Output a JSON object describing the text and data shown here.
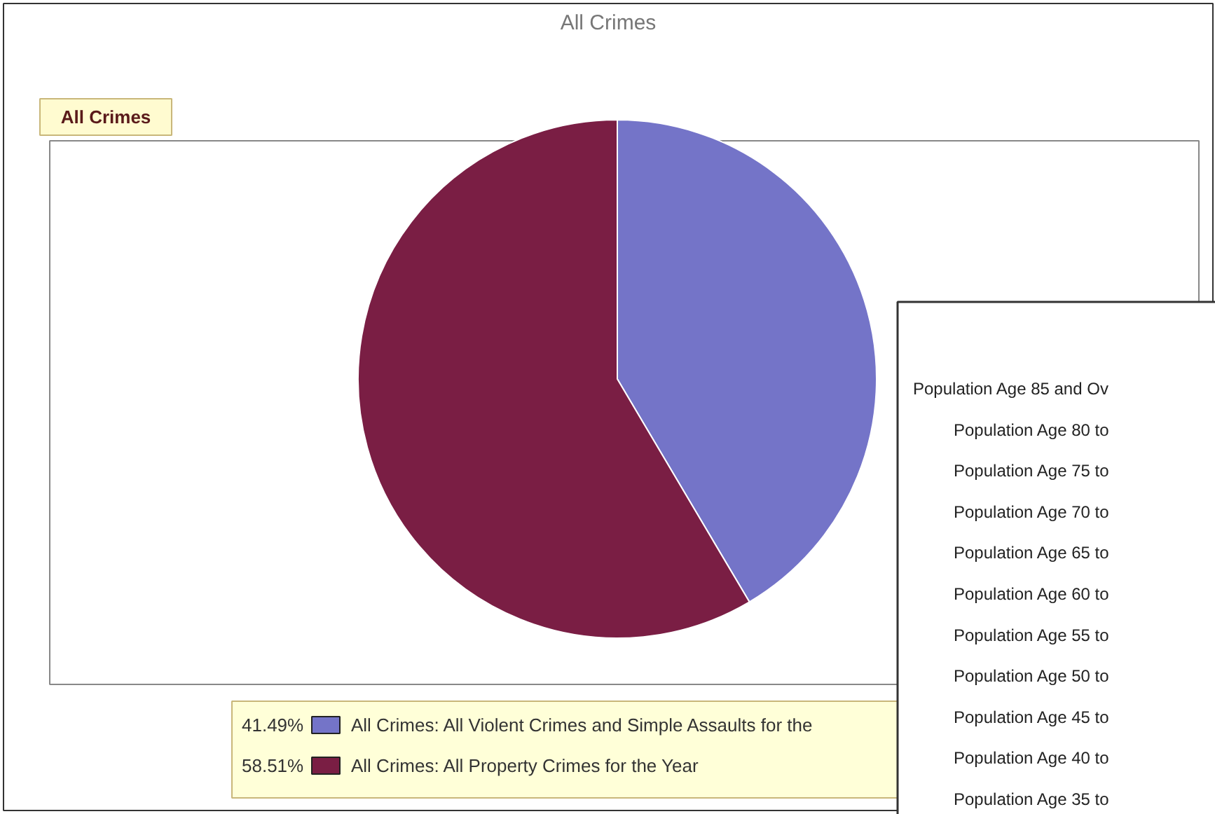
{
  "chart_data": [
    {
      "type": "pie",
      "title": "All Crimes",
      "subtitle": "All Crimes",
      "categories": [
        "All Crimes: All Violent Crimes and Simple Assaults for the",
        "All Crimes: All Property Crimes for the Year"
      ],
      "values": [
        41.49,
        58.51
      ],
      "colors": [
        "#7474c8",
        "#7a1e44"
      ],
      "value_labels": [
        "41.49%",
        "58.51%"
      ],
      "legend": "bottom"
    },
    {
      "type": "other",
      "annotations": [
        "Population Age 85 and Ov",
        "Population Age 80 to",
        "Population Age 75 to",
        "Population Age 70 to",
        "Population Age 65 to",
        "Population Age 60 to",
        "Population Age 55 to",
        "Population Age 50 to",
        "Population Age 45 to",
        "Population Age 40 to",
        "Population Age 35 to"
      ]
    }
  ]
}
